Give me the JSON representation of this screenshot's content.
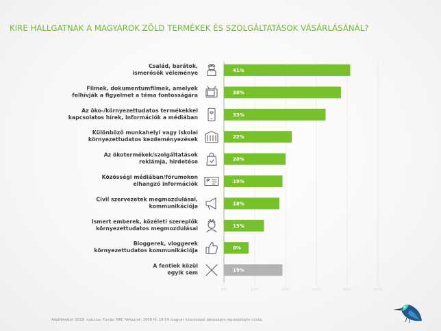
{
  "title": "KIRE HALLGATNAK A MAGYAROK ZÖLD TERMÉKEK ÉS SZOLGÁLTATÁSOK VÁSÁRLÁSÁNÁL?",
  "footnote": "Adatfelvétel: 2019. március, Forrás: NRC Netpanel, 1000 fő, 18-59 magyar internetező lakosságra reprezentatív minta",
  "colors": {
    "green": "#77c22b",
    "gray": "#b3b3b3",
    "title": "#6fb92c"
  },
  "chart_data": {
    "type": "bar",
    "orientation": "horizontal",
    "xlim": [
      0,
      50
    ],
    "ticks": [
      "0%",
      "10%",
      "20%",
      "30%",
      "40%",
      "50%"
    ],
    "categories": [
      {
        "lines": [
          "Család, barátok,",
          "ismerősök véleménye"
        ],
        "icon": "people-icon"
      },
      {
        "lines": [
          "Filmek, dokumentumfilmek, amelyek",
          "felhívják a figyelmet a téma fontosságára"
        ],
        "icon": "tv-icon"
      },
      {
        "lines": [
          "Az öko-/környezettudatos termékekkel",
          "kapcsolatos hírek, információk a médiában"
        ],
        "icon": "smartphone-icon"
      },
      {
        "lines": [
          "Különböző munkahelyi vagy iskolai",
          "környezettudatos kezdeményezések"
        ],
        "icon": "building-icon"
      },
      {
        "lines": [
          "Az ökotermékek/szolgáltatások",
          "reklámja, hirdetése"
        ],
        "icon": "shopping-bag-icon"
      },
      {
        "lines": [
          "Közösségi médiában/fórumokon",
          "elhangzó információk"
        ],
        "icon": "social-post-icon"
      },
      {
        "lines": [
          "Civil szervezetek megmozdulásai,",
          "kommunikációja"
        ],
        "icon": "megaphone-icon"
      },
      {
        "lines": [
          "Ismert emberek, közéleti szereplők",
          "környezettudatos megmozdulásai"
        ],
        "icon": "celebrity-icon"
      },
      {
        "lines": [
          "Bloggerek, vloggerek",
          "környezettudatos kommunikációja"
        ],
        "icon": "thumbs-up-icon"
      },
      {
        "lines": [
          "A fentiek közül",
          "egyik sem"
        ],
        "icon": "x-icon"
      }
    ],
    "values": [
      41,
      38,
      33,
      22,
      20,
      19,
      18,
      13,
      8,
      19
    ],
    "value_labels": [
      "41%",
      "38%",
      "33%",
      "22%",
      "20%",
      "19%",
      "18%",
      "13%",
      "8%",
      "19%"
    ],
    "bar_colors": [
      "green",
      "green",
      "green",
      "green",
      "green",
      "green",
      "green",
      "green",
      "green",
      "gray"
    ]
  }
}
